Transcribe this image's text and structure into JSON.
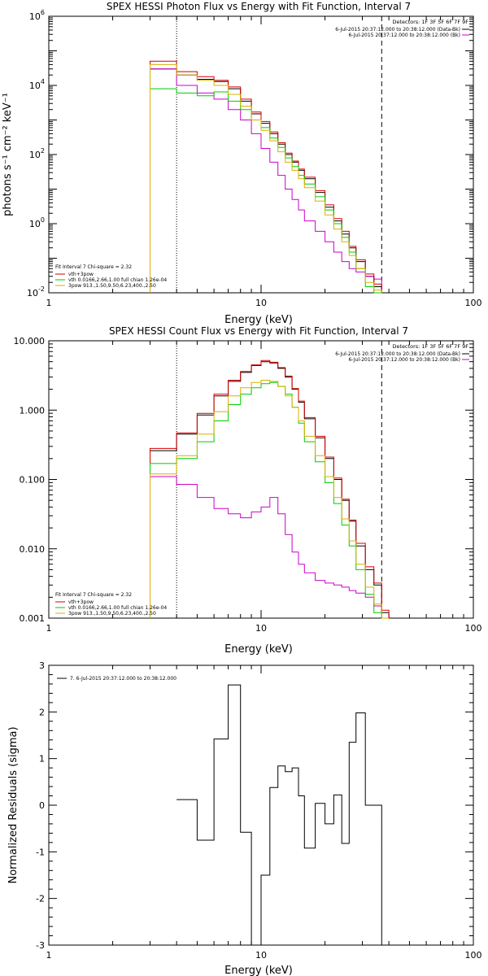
{
  "panels": [
    {
      "id": "photon",
      "title": "SPEX HESSI Photon Flux vs Energy with Fit Function, Interval 7",
      "xlabel": "Energy (keV)",
      "ylabel": "photons s⁻¹ cm⁻² keV⁻¹",
      "detectors_text": "Detectors: 1F 3F 5F 6F 7F 9F",
      "top_legend": [
        {
          "text": "6-Jul-2015 20:37:12.000 to 20:38:12.000 (Data-Bk)",
          "color": "#000000"
        },
        {
          "text": "6-Jul-2015 20:37:12.000 to 20:38:12.000 (Bk)",
          "color": "#cc00cc"
        }
      ],
      "fit_text": "Fit Interval  7    Chi-square = 2.32",
      "fit_legend": [
        {
          "text": "vth+3pow",
          "color": "#d40000"
        },
        {
          "text": "vth 0.0166,2.66,1.00  full chian 1.26e-04",
          "color": "#00cc00"
        },
        {
          "text": "3pow 913.,1.50,9.50,6.23,400.,2.50",
          "color": "#d8b000"
        }
      ]
    },
    {
      "id": "count",
      "title": "SPEX HESSI Count Flux vs Energy with Fit Function, Interval 7",
      "xlabel": "Energy (keV)",
      "ylabel": "",
      "detectors_text": "Detectors: 1F 3F 5F 6F 7F 9F",
      "top_legend": [
        {
          "text": "6-Jul-2015 20:37:12.000 to 20:38:12.000 (Data-Bk)",
          "color": "#000000"
        },
        {
          "text": "6-Jul-2015 20:37:12.000 to 20:38:12.000 (Bk)",
          "color": "#cc00cc"
        }
      ],
      "fit_text": "Fit Interval  7    Chi-square = 2.32",
      "fit_legend": [
        {
          "text": "vth+3pow",
          "color": "#d40000"
        },
        {
          "text": "vth 0.0166,2.66,1.00  full chian 1.26e-04",
          "color": "#00cc00"
        },
        {
          "text": "3pow 913.,1.50,9.50,6.23,400.,2.50",
          "color": "#d8b000"
        }
      ]
    },
    {
      "id": "resid",
      "title": "",
      "xlabel": "Energy (keV)",
      "ylabel": "Normalized Residuals (sigma)",
      "legend_text": "7.  6-Jul-2015 20:37:12.000 to 20:38:12.000"
    }
  ],
  "chart_data": [
    {
      "type": "line",
      "title": "SPEX HESSI Photon Flux vs Energy with Fit Function, Interval 7",
      "xlabel": "Energy (keV)",
      "ylabel": "photons s^-1 cm^-2 keV^-1",
      "xscale": "log",
      "yscale": "log",
      "xlim": [
        1,
        100
      ],
      "ylim": [
        0.01,
        1000000
      ],
      "x_ticks": [
        "1",
        "10",
        "100"
      ],
      "y_ticks": [
        "10^-2",
        "10^0",
        "10^2",
        "10^4",
        "10^6"
      ],
      "vlines": [
        {
          "x": 4.0,
          "style": "dotted"
        },
        {
          "x": 37.0,
          "style": "dashed"
        }
      ],
      "bin_edges": [
        3,
        4,
        5,
        6,
        7,
        8,
        9,
        10,
        11,
        12,
        13,
        14,
        15,
        16,
        18,
        20,
        22,
        24,
        26,
        28,
        31,
        34,
        37
      ],
      "series": [
        {
          "name": "Data-Bk",
          "color": "#000000",
          "values": [
            30000,
            20000,
            15000,
            13000,
            8000,
            3500,
            1500,
            800,
            400,
            200,
            100,
            60,
            35,
            20,
            8,
            3,
            1.2,
            0.5,
            0.2,
            0.08,
            0.03,
            0.015
          ]
        },
        {
          "name": "Bk",
          "color": "#cc00cc",
          "values": [
            30000,
            10000,
            6000,
            4000,
            2000,
            1000,
            400,
            150,
            60,
            25,
            10,
            5,
            2.5,
            1.2,
            0.6,
            0.3,
            0.15,
            0.08,
            0.05,
            0.04,
            0.03,
            0.025
          ]
        },
        {
          "name": "vth+3pow",
          "color": "#d40000",
          "values": [
            50000,
            25000,
            18000,
            14000,
            9000,
            4000,
            1700,
            900,
            450,
            220,
            110,
            65,
            38,
            22,
            9,
            3.5,
            1.4,
            0.6,
            0.22,
            0.09,
            0.035,
            0.018
          ]
        },
        {
          "name": "vth",
          "color": "#00cc00",
          "values": [
            8000,
            6000,
            5000,
            6500,
            3500,
            2000,
            1000,
            600,
            300,
            160,
            80,
            45,
            25,
            14,
            6,
            2.5,
            1.0,
            0.4,
            0.15,
            0.05,
            0.015,
            0.008
          ]
        },
        {
          "name": "3pow",
          "color": "#d8b000",
          "values": [
            40000,
            20000,
            14000,
            10000,
            5500,
            2500,
            1000,
            500,
            250,
            120,
            60,
            35,
            20,
            11,
            4.5,
            1.8,
            0.7,
            0.3,
            0.12,
            0.05,
            0.02,
            0.012
          ]
        }
      ]
    },
    {
      "type": "line",
      "title": "SPEX HESSI Count Flux vs Energy with Fit Function, Interval 7",
      "xlabel": "Energy (keV)",
      "ylabel": "",
      "xscale": "log",
      "yscale": "log",
      "xlim": [
        1,
        100
      ],
      "ylim": [
        0.001,
        10
      ],
      "y_ticks": [
        "10.000",
        "1.000",
        "0.100",
        "0.010",
        "0.001"
      ],
      "x_ticks": [
        "1",
        "10",
        "100"
      ],
      "vlines": [
        {
          "x": 4.0,
          "style": "dotted"
        },
        {
          "x": 37.0,
          "style": "dashed"
        }
      ],
      "bin_edges": [
        3,
        4,
        5,
        6,
        7,
        8,
        9,
        10,
        11,
        12,
        13,
        14,
        15,
        16,
        18,
        20,
        22,
        24,
        26,
        28,
        31,
        34,
        37,
        40
      ],
      "series": [
        {
          "name": "Data-Bk",
          "color": "#000000",
          "values": [
            0.26,
            0.45,
            0.85,
            1.6,
            2.6,
            3.5,
            4.4,
            5.0,
            4.8,
            4.0,
            3.0,
            2.0,
            1.3,
            0.75,
            0.4,
            0.2,
            0.1,
            0.05,
            0.025,
            0.011,
            0.005,
            0.003,
            0.0012
          ]
        },
        {
          "name": "Bk",
          "color": "#cc00cc",
          "values": [
            0.11,
            0.085,
            0.055,
            0.038,
            0.032,
            0.028,
            0.034,
            0.04,
            0.055,
            0.032,
            0.016,
            0.009,
            0.006,
            0.0045,
            0.0035,
            0.0032,
            0.003,
            0.0028,
            0.0025,
            0.0023,
            0.002,
            0.0015,
            0.001
          ]
        },
        {
          "name": "vth+3pow",
          "color": "#d40000",
          "values": [
            0.28,
            0.47,
            0.9,
            1.7,
            2.7,
            3.6,
            4.5,
            5.2,
            4.9,
            4.1,
            3.1,
            2.05,
            1.35,
            0.78,
            0.42,
            0.21,
            0.105,
            0.052,
            0.026,
            0.012,
            0.0055,
            0.0032,
            0.0013
          ]
        },
        {
          "name": "vth",
          "color": "#00cc00",
          "values": [
            0.17,
            0.2,
            0.35,
            0.7,
            1.2,
            1.7,
            2.1,
            2.4,
            2.5,
            2.2,
            1.7,
            1.1,
            0.65,
            0.35,
            0.18,
            0.09,
            0.045,
            0.022,
            0.011,
            0.005,
            0.0022,
            0.0012,
            0.001
          ]
        },
        {
          "name": "3pow",
          "color": "#d8b000",
          "values": [
            0.12,
            0.22,
            0.45,
            0.95,
            1.6,
            2.1,
            2.5,
            2.7,
            2.6,
            2.2,
            1.6,
            1.1,
            0.7,
            0.42,
            0.22,
            0.11,
            0.055,
            0.027,
            0.013,
            0.006,
            0.0028,
            0.0016,
            0.001
          ]
        }
      ]
    },
    {
      "type": "line",
      "title": "",
      "xlabel": "Energy (keV)",
      "ylabel": "Normalized Residuals (sigma)",
      "xscale": "log",
      "yscale": "linear",
      "xlim": [
        1,
        100
      ],
      "ylim": [
        -3,
        3
      ],
      "y_ticks": [
        "3",
        "2",
        "1",
        "0",
        "-1",
        "-2",
        "-3"
      ],
      "x_ticks": [
        "1",
        "10",
        "100"
      ],
      "bin_edges": [
        4,
        5,
        6,
        7,
        8,
        9,
        10,
        11,
        12,
        13,
        14,
        15,
        16,
        18,
        20,
        22,
        24,
        26,
        28,
        31,
        34,
        37
      ],
      "series": [
        {
          "name": "7.  6-Jul-2015 20:37:12.000 to 20:38:12.000",
          "color": "#000000",
          "values": [
            0.12,
            -0.75,
            1.42,
            2.58,
            -0.58,
            -3.0,
            -1.5,
            0.38,
            0.84,
            0.72,
            0.8,
            0.2,
            -0.92,
            0.04,
            -0.4,
            0.22,
            -0.82,
            1.35,
            1.98,
            0.0,
            0.0
          ]
        }
      ]
    }
  ]
}
